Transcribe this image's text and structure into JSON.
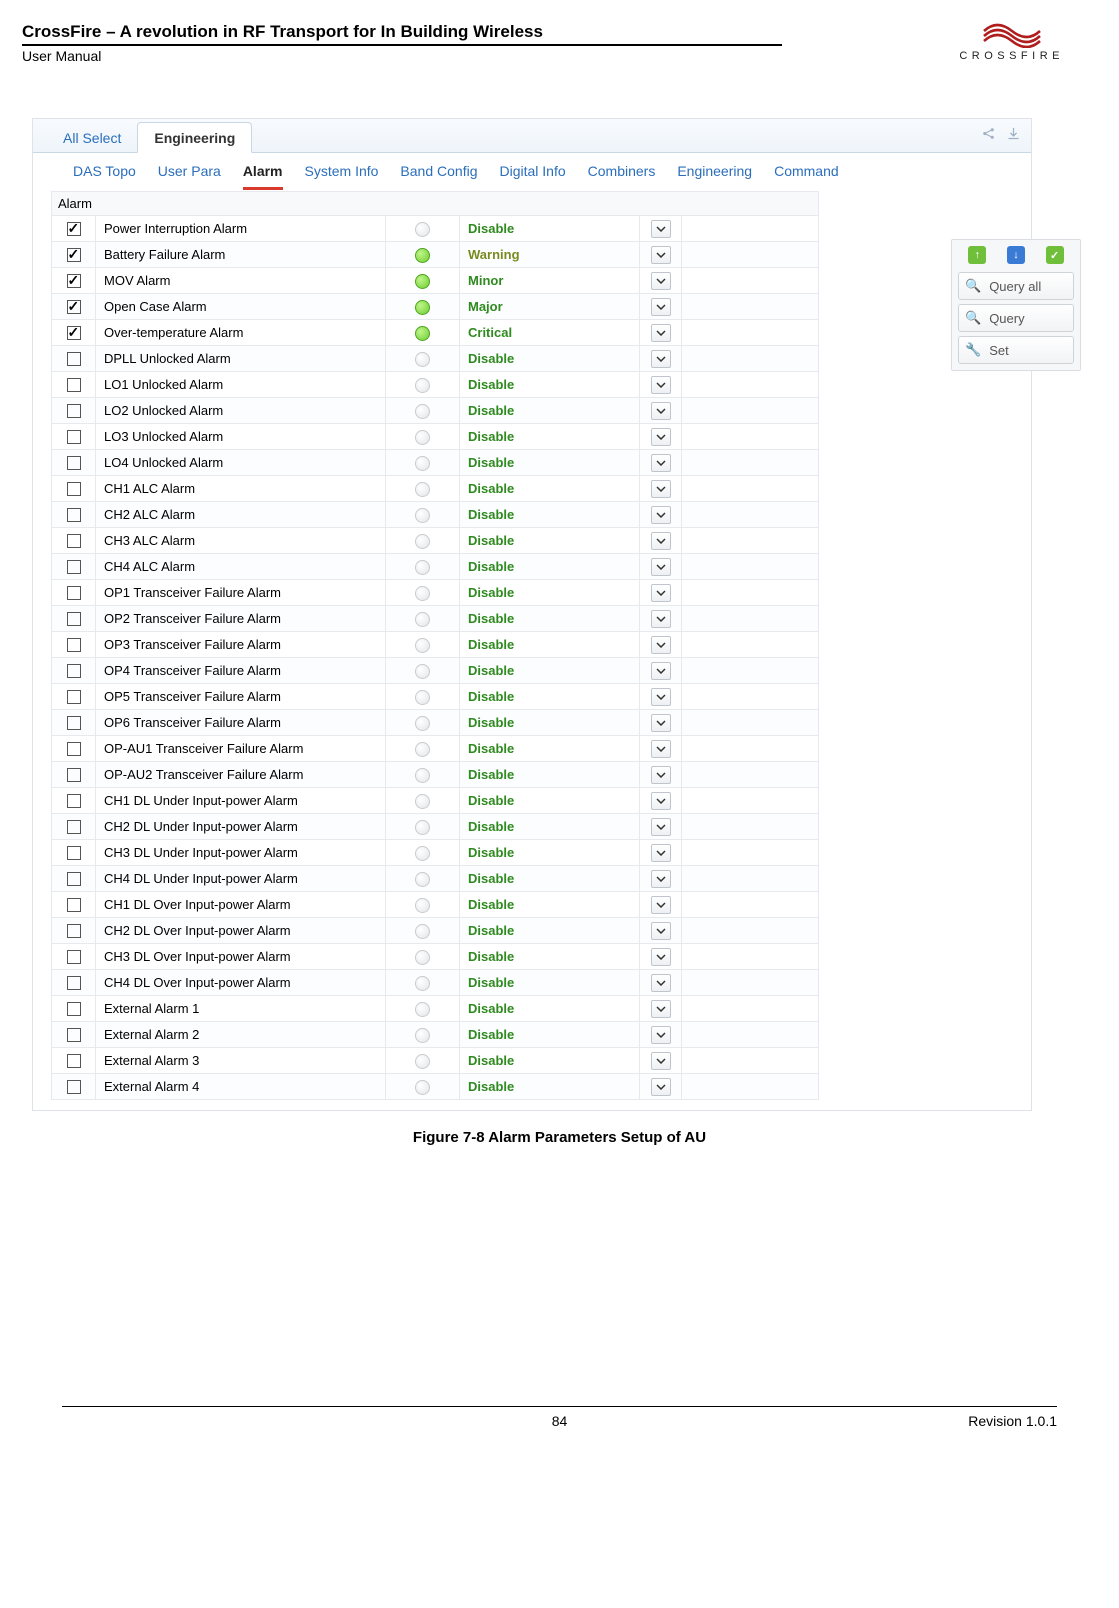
{
  "header": {
    "title": "CrossFire – A revolution in RF Transport for In Building Wireless",
    "subtitle": "User Manual",
    "logo_text": "CROSSFIRE"
  },
  "colors": {
    "link_blue": "#2a6ebb",
    "underline_red": "#d93a2b",
    "led_grey": "#e3e5e7",
    "led_green": "#6fce2f",
    "status_green": "#2f8a1f",
    "status_olive": "#7a8a1f",
    "side_green": "#6fbf3a",
    "side_blue": "#3a7bd5"
  },
  "top_tabs": {
    "items": [
      "All Select",
      "Engineering"
    ],
    "active_index": 1
  },
  "sub_tabs": {
    "items": [
      "DAS Topo",
      "User Para",
      "Alarm",
      "System Info",
      "Band Config",
      "Digital Info",
      "Combiners",
      "Engineering",
      "Command"
    ],
    "active_index": 2
  },
  "section_title": "Alarm",
  "side_panel": {
    "query_all": "Query all",
    "query": "Query",
    "set": "Set"
  },
  "alarms": [
    {
      "checked": true,
      "name": "Power Interruption Alarm",
      "led": "grey",
      "status": "Disable",
      "status_color": "#2f8a1f"
    },
    {
      "checked": true,
      "name": "Battery Failure Alarm",
      "led": "green",
      "status": "Warning",
      "status_color": "#7a8a1f"
    },
    {
      "checked": true,
      "name": "MOV Alarm",
      "led": "green",
      "status": "Minor",
      "status_color": "#2f8a1f"
    },
    {
      "checked": true,
      "name": "Open Case Alarm",
      "led": "green",
      "status": "Major",
      "status_color": "#2f8a1f"
    },
    {
      "checked": true,
      "name": "Over-temperature Alarm",
      "led": "green",
      "status": "Critical",
      "status_color": "#2f8a1f"
    },
    {
      "checked": false,
      "name": "DPLL Unlocked Alarm",
      "led": "grey",
      "status": "Disable",
      "status_color": "#2f8a1f"
    },
    {
      "checked": false,
      "name": "LO1 Unlocked Alarm",
      "led": "grey",
      "status": "Disable",
      "status_color": "#2f8a1f"
    },
    {
      "checked": false,
      "name": "LO2 Unlocked Alarm",
      "led": "grey",
      "status": "Disable",
      "status_color": "#2f8a1f"
    },
    {
      "checked": false,
      "name": "LO3 Unlocked Alarm",
      "led": "grey",
      "status": "Disable",
      "status_color": "#2f8a1f"
    },
    {
      "checked": false,
      "name": "LO4 Unlocked Alarm",
      "led": "grey",
      "status": "Disable",
      "status_color": "#2f8a1f"
    },
    {
      "checked": false,
      "name": "CH1 ALC Alarm",
      "led": "grey",
      "status": "Disable",
      "status_color": "#2f8a1f"
    },
    {
      "checked": false,
      "name": "CH2 ALC Alarm",
      "led": "grey",
      "status": "Disable",
      "status_color": "#2f8a1f"
    },
    {
      "checked": false,
      "name": "CH3 ALC Alarm",
      "led": "grey",
      "status": "Disable",
      "status_color": "#2f8a1f"
    },
    {
      "checked": false,
      "name": "CH4 ALC Alarm",
      "led": "grey",
      "status": "Disable",
      "status_color": "#2f8a1f"
    },
    {
      "checked": false,
      "name": "OP1 Transceiver Failure Alarm",
      "led": "grey",
      "status": "Disable",
      "status_color": "#2f8a1f"
    },
    {
      "checked": false,
      "name": "OP2 Transceiver Failure Alarm",
      "led": "grey",
      "status": "Disable",
      "status_color": "#2f8a1f"
    },
    {
      "checked": false,
      "name": "OP3 Transceiver Failure Alarm",
      "led": "grey",
      "status": "Disable",
      "status_color": "#2f8a1f"
    },
    {
      "checked": false,
      "name": "OP4 Transceiver Failure Alarm",
      "led": "grey",
      "status": "Disable",
      "status_color": "#2f8a1f"
    },
    {
      "checked": false,
      "name": "OP5 Transceiver Failure Alarm",
      "led": "grey",
      "status": "Disable",
      "status_color": "#2f8a1f"
    },
    {
      "checked": false,
      "name": "OP6 Transceiver Failure Alarm",
      "led": "grey",
      "status": "Disable",
      "status_color": "#2f8a1f"
    },
    {
      "checked": false,
      "name": "OP-AU1 Transceiver Failure Alarm",
      "led": "grey",
      "status": "Disable",
      "status_color": "#2f8a1f"
    },
    {
      "checked": false,
      "name": "OP-AU2 Transceiver Failure Alarm",
      "led": "grey",
      "status": "Disable",
      "status_color": "#2f8a1f"
    },
    {
      "checked": false,
      "name": "CH1 DL Under Input-power Alarm",
      "led": "grey",
      "status": "Disable",
      "status_color": "#2f8a1f"
    },
    {
      "checked": false,
      "name": "CH2 DL Under Input-power Alarm",
      "led": "grey",
      "status": "Disable",
      "status_color": "#2f8a1f"
    },
    {
      "checked": false,
      "name": "CH3 DL Under Input-power Alarm",
      "led": "grey",
      "status": "Disable",
      "status_color": "#2f8a1f"
    },
    {
      "checked": false,
      "name": "CH4 DL Under Input-power Alarm",
      "led": "grey",
      "status": "Disable",
      "status_color": "#2f8a1f"
    },
    {
      "checked": false,
      "name": "CH1 DL Over Input-power Alarm",
      "led": "grey",
      "status": "Disable",
      "status_color": "#2f8a1f"
    },
    {
      "checked": false,
      "name": "CH2 DL Over Input-power Alarm",
      "led": "grey",
      "status": "Disable",
      "status_color": "#2f8a1f"
    },
    {
      "checked": false,
      "name": "CH3 DL Over Input-power Alarm",
      "led": "grey",
      "status": "Disable",
      "status_color": "#2f8a1f"
    },
    {
      "checked": false,
      "name": "CH4 DL Over Input-power Alarm",
      "led": "grey",
      "status": "Disable",
      "status_color": "#2f8a1f"
    },
    {
      "checked": false,
      "name": "External Alarm 1",
      "led": "grey",
      "status": "Disable",
      "status_color": "#2f8a1f"
    },
    {
      "checked": false,
      "name": "External Alarm 2",
      "led": "grey",
      "status": "Disable",
      "status_color": "#2f8a1f"
    },
    {
      "checked": false,
      "name": "External Alarm 3",
      "led": "grey",
      "status": "Disable",
      "status_color": "#2f8a1f"
    },
    {
      "checked": false,
      "name": "External Alarm 4",
      "led": "grey",
      "status": "Disable",
      "status_color": "#2f8a1f"
    }
  ],
  "figure_caption": "Figure 7-8 Alarm Parameters Setup of AU",
  "footer": {
    "page_number": "84",
    "revision": "Revision 1.0.1"
  }
}
